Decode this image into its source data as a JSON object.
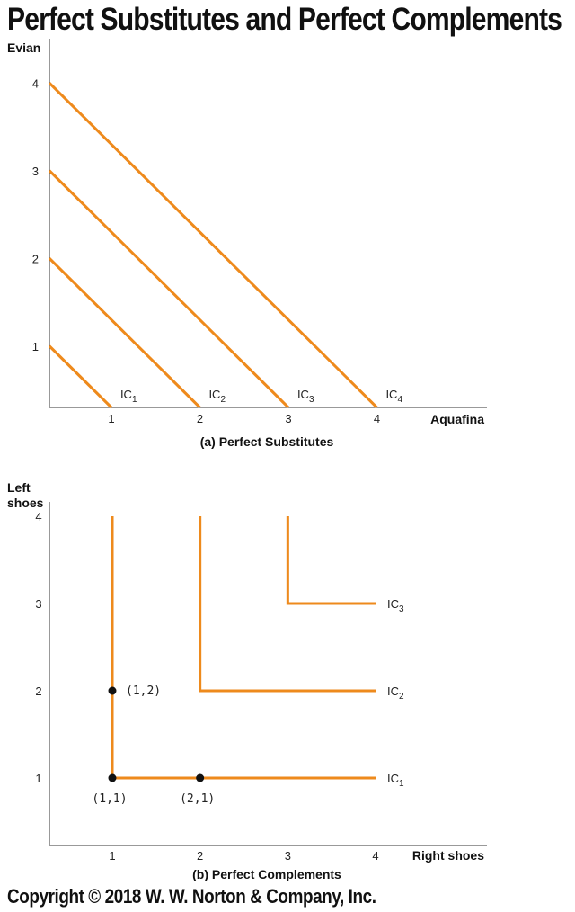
{
  "title": "Perfect Substitutes and Perfect Complements",
  "copyright": "Copyright © 2018 W. W. Norton & Company, Inc.",
  "colors": {
    "curve": "#ee8a1c",
    "axis": "#333333",
    "point": "#111111"
  },
  "chart_data": [
    {
      "type": "line",
      "caption": "(a) Perfect Substitutes",
      "xlabel": "Aquafina",
      "ylabel": "Evian",
      "xticks": [
        "1",
        "2",
        "3",
        "4"
      ],
      "yticks": [
        "1",
        "2",
        "3",
        "4"
      ],
      "xlim": [
        0.3,
        5.5
      ],
      "ylim": [
        0.3,
        4.0
      ],
      "series": [
        {
          "name": "IC",
          "sub": "1",
          "points": [
            [
              0.3,
              1.0
            ],
            [
              1.0,
              0.3
            ]
          ]
        },
        {
          "name": "IC",
          "sub": "2",
          "points": [
            [
              0.3,
              2.0
            ],
            [
              2.0,
              0.3
            ]
          ]
        },
        {
          "name": "IC",
          "sub": "3",
          "points": [
            [
              0.3,
              3.0
            ],
            [
              3.0,
              0.3
            ]
          ]
        },
        {
          "name": "IC",
          "sub": "4",
          "points": [
            [
              0.3,
              4.0
            ],
            [
              4.0,
              0.3
            ]
          ]
        }
      ]
    },
    {
      "type": "line",
      "caption": "(b) Perfect Complements",
      "xlabel": "Right shoes",
      "ylabel_lines": [
        "Left",
        "shoes"
      ],
      "xticks": [
        "1",
        "2",
        "3",
        "4"
      ],
      "yticks": [
        "1",
        "2",
        "3",
        "4"
      ],
      "xlim": [
        0.3,
        5.3
      ],
      "ylim": [
        0.2,
        4.0
      ],
      "series": [
        {
          "name": "IC",
          "sub": "1",
          "points": [
            [
              1,
              4
            ],
            [
              1,
              1
            ],
            [
              4,
              1
            ]
          ]
        },
        {
          "name": "IC",
          "sub": "2",
          "points": [
            [
              2,
              4
            ],
            [
              2,
              2
            ],
            [
              4,
              2
            ]
          ]
        },
        {
          "name": "IC",
          "sub": "3",
          "points": [
            [
              3,
              4
            ],
            [
              3,
              3
            ],
            [
              4,
              3
            ]
          ]
        }
      ],
      "points": [
        {
          "label": "(1,1)",
          "x": 1,
          "y": 1,
          "pos": "below"
        },
        {
          "label": "(2,1)",
          "x": 2,
          "y": 1,
          "pos": "below"
        },
        {
          "label": "(1,2)",
          "x": 1,
          "y": 2,
          "pos": "right"
        }
      ]
    }
  ]
}
